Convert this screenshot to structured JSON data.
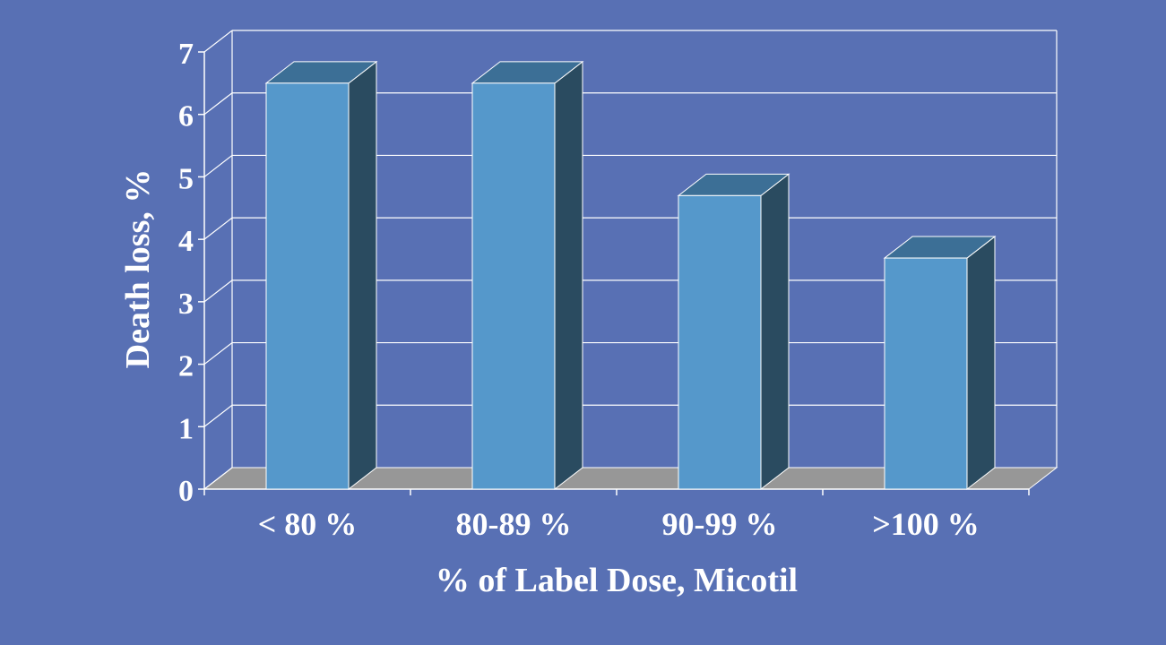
{
  "colors": {
    "background": "#5870b4",
    "bar_front": "#5598cb",
    "bar_top": "#3c6f96",
    "bar_side": "#2a4b60",
    "floor": "#979797",
    "gridline": "#ffffff",
    "text": "#ffffff"
  },
  "chart_data": {
    "type": "bar",
    "style": "3d",
    "categories": [
      "< 80 %",
      "80-89 %",
      "90-99 %",
      ">100 %"
    ],
    "values": [
      6.5,
      6.5,
      4.7,
      3.7
    ],
    "title": "",
    "xlabel": "% of Label Dose, Micotil",
    "ylabel": "Death loss, %",
    "ylim": [
      0,
      7
    ],
    "yticks": [
      "0",
      "1",
      "2",
      "3",
      "4",
      "5",
      "6",
      "7"
    ],
    "grid": true,
    "legend": "none"
  }
}
